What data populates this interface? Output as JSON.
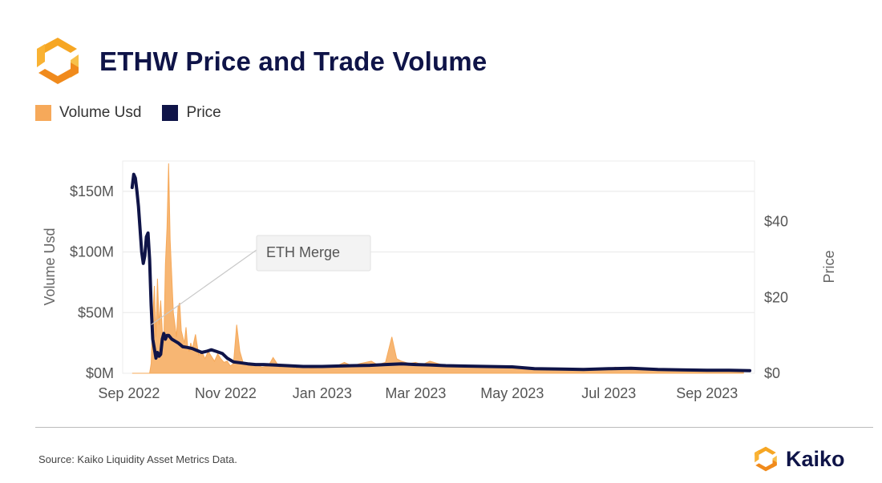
{
  "header": {
    "title": "ETHW Price and Trade Volume",
    "logo_icon": "kaiko-hexagon-logo-icon"
  },
  "colors": {
    "volume": "#f6a95a",
    "price": "#0f1448",
    "title": "#0f1448",
    "grid": "#e8e8e8"
  },
  "chart_data": {
    "type": "area+line",
    "x_axis": {
      "ticks": [
        "Sep 2022",
        "Nov 2022",
        "Jan 2023",
        "Mar 2023",
        "May 2023",
        "Jul 2023",
        "Sep 2023"
      ],
      "range": [
        "2022-08-28",
        "2023-10-01"
      ]
    },
    "y_left": {
      "label": "Volume Usd",
      "ticks": [
        "$0M",
        "$50M",
        "$100M",
        "$150M"
      ],
      "range": [
        0,
        175
      ]
    },
    "y_right": {
      "label": "Price",
      "ticks": [
        "$0",
        "$20",
        "$40"
      ],
      "range": [
        0,
        56
      ]
    },
    "legend": {
      "position": "top-left",
      "entries": [
        "Volume Usd",
        "Price"
      ]
    },
    "annotation": {
      "text": "ETH Merge",
      "date": "2022-09-15"
    },
    "series": [
      {
        "name": "Volume Usd",
        "type": "area",
        "axis": "left",
        "points": [
          [
            "2022-09-03",
            0
          ],
          [
            "2022-09-14",
            0
          ],
          [
            "2022-09-15",
            8
          ],
          [
            "2022-09-16",
            45
          ],
          [
            "2022-09-17",
            72
          ],
          [
            "2022-09-18",
            30
          ],
          [
            "2022-09-19",
            78
          ],
          [
            "2022-09-20",
            40
          ],
          [
            "2022-09-21",
            60
          ],
          [
            "2022-09-22",
            35
          ],
          [
            "2022-09-23",
            25
          ],
          [
            "2022-09-24",
            90
          ],
          [
            "2022-09-25",
            120
          ],
          [
            "2022-09-26",
            173
          ],
          [
            "2022-09-27",
            110
          ],
          [
            "2022-09-28",
            80
          ],
          [
            "2022-09-29",
            50
          ],
          [
            "2022-09-30",
            40
          ],
          [
            "2022-10-01",
            30
          ],
          [
            "2022-10-02",
            55
          ],
          [
            "2022-10-03",
            58
          ],
          [
            "2022-10-04",
            35
          ],
          [
            "2022-10-05",
            30
          ],
          [
            "2022-10-06",
            25
          ],
          [
            "2022-10-07",
            38
          ],
          [
            "2022-10-08",
            22
          ],
          [
            "2022-10-09",
            18
          ],
          [
            "2022-10-10",
            25
          ],
          [
            "2022-10-11",
            20
          ],
          [
            "2022-10-13",
            32
          ],
          [
            "2022-10-15",
            15
          ],
          [
            "2022-10-17",
            18
          ],
          [
            "2022-10-19",
            12
          ],
          [
            "2022-10-21",
            18
          ],
          [
            "2022-10-23",
            14
          ],
          [
            "2022-10-25",
            10
          ],
          [
            "2022-10-27",
            16
          ],
          [
            "2022-10-29",
            12
          ],
          [
            "2022-10-31",
            9
          ],
          [
            "2022-11-02",
            10
          ],
          [
            "2022-11-04",
            6
          ],
          [
            "2022-11-06",
            8
          ],
          [
            "2022-11-08",
            40
          ],
          [
            "2022-11-10",
            18
          ],
          [
            "2022-11-12",
            9
          ],
          [
            "2022-11-14",
            8
          ],
          [
            "2022-11-17",
            6
          ],
          [
            "2022-11-20",
            7
          ],
          [
            "2022-11-24",
            5
          ],
          [
            "2022-11-28",
            6
          ],
          [
            "2022-12-01",
            13
          ],
          [
            "2022-12-05",
            5
          ],
          [
            "2022-12-10",
            7
          ],
          [
            "2022-12-15",
            4
          ],
          [
            "2022-12-20",
            6
          ],
          [
            "2022-12-25",
            4
          ],
          [
            "2023-01-01",
            5
          ],
          [
            "2023-01-10",
            6
          ],
          [
            "2023-01-15",
            9
          ],
          [
            "2023-01-20",
            6
          ],
          [
            "2023-01-25",
            8
          ],
          [
            "2023-02-01",
            10
          ],
          [
            "2023-02-05",
            7
          ],
          [
            "2023-02-10",
            9
          ],
          [
            "2023-02-14",
            30
          ],
          [
            "2023-02-17",
            12
          ],
          [
            "2023-02-20",
            10
          ],
          [
            "2023-02-25",
            8
          ],
          [
            "2023-03-01",
            9
          ],
          [
            "2023-03-05",
            7
          ],
          [
            "2023-03-10",
            10
          ],
          [
            "2023-03-15",
            8
          ],
          [
            "2023-03-20",
            6
          ],
          [
            "2023-03-25",
            7
          ],
          [
            "2023-04-01",
            6
          ],
          [
            "2023-04-10",
            5
          ],
          [
            "2023-04-20",
            6
          ],
          [
            "2023-05-01",
            4
          ],
          [
            "2023-05-10",
            5
          ],
          [
            "2023-05-20",
            4
          ],
          [
            "2023-06-01",
            3
          ],
          [
            "2023-06-15",
            4
          ],
          [
            "2023-07-01",
            3
          ],
          [
            "2023-07-05",
            5
          ],
          [
            "2023-07-15",
            3
          ],
          [
            "2023-08-01",
            3
          ],
          [
            "2023-08-15",
            2
          ],
          [
            "2023-09-01",
            2
          ],
          [
            "2023-09-15",
            2
          ],
          [
            "2023-09-24",
            1
          ]
        ]
      },
      {
        "name": "Price",
        "type": "line",
        "axis": "right",
        "points": [
          [
            "2022-09-03",
            49
          ],
          [
            "2022-09-04",
            52.5
          ],
          [
            "2022-09-05",
            51.5
          ],
          [
            "2022-09-06",
            48
          ],
          [
            "2022-09-07",
            44
          ],
          [
            "2022-09-08",
            38
          ],
          [
            "2022-09-09",
            32
          ],
          [
            "2022-09-10",
            29
          ],
          [
            "2022-09-11",
            31
          ],
          [
            "2022-09-12",
            36
          ],
          [
            "2022-09-13",
            37
          ],
          [
            "2022-09-14",
            30
          ],
          [
            "2022-09-15",
            18
          ],
          [
            "2022-09-16",
            9
          ],
          [
            "2022-09-17",
            6.5
          ],
          [
            "2022-09-18",
            4
          ],
          [
            "2022-09-19",
            5.5
          ],
          [
            "2022-09-20",
            4.5
          ],
          [
            "2022-09-21",
            5
          ],
          [
            "2022-09-22",
            9
          ],
          [
            "2022-09-23",
            10.5
          ],
          [
            "2022-09-24",
            9
          ],
          [
            "2022-09-25",
            10
          ],
          [
            "2022-09-26",
            10
          ],
          [
            "2022-09-27",
            9.5
          ],
          [
            "2022-09-28",
            9
          ],
          [
            "2022-09-30",
            8.5
          ],
          [
            "2022-10-02",
            8
          ],
          [
            "2022-10-05",
            7
          ],
          [
            "2022-10-08",
            6.8
          ],
          [
            "2022-10-11",
            6.5
          ],
          [
            "2022-10-14",
            6
          ],
          [
            "2022-10-17",
            5.5
          ],
          [
            "2022-10-20",
            5.8
          ],
          [
            "2022-10-23",
            6.2
          ],
          [
            "2022-10-26",
            5.8
          ],
          [
            "2022-10-30",
            5.2
          ],
          [
            "2022-11-02",
            4
          ],
          [
            "2022-11-06",
            3
          ],
          [
            "2022-11-10",
            2.8
          ],
          [
            "2022-11-15",
            2.5
          ],
          [
            "2022-11-20",
            2.3
          ],
          [
            "2022-11-25",
            2.3
          ],
          [
            "2022-12-01",
            2.2
          ],
          [
            "2022-12-10",
            2.0
          ],
          [
            "2022-12-20",
            1.8
          ],
          [
            "2023-01-01",
            1.8
          ],
          [
            "2023-01-10",
            1.9
          ],
          [
            "2023-01-20",
            2.0
          ],
          [
            "2023-01-31",
            2.1
          ],
          [
            "2023-02-10",
            2.3
          ],
          [
            "2023-02-20",
            2.5
          ],
          [
            "2023-03-01",
            2.3
          ],
          [
            "2023-03-10",
            2.2
          ],
          [
            "2023-03-20",
            2.0
          ],
          [
            "2023-04-01",
            1.9
          ],
          [
            "2023-04-15",
            1.8
          ],
          [
            "2023-05-01",
            1.7
          ],
          [
            "2023-05-15",
            1.2
          ],
          [
            "2023-06-01",
            1.1
          ],
          [
            "2023-06-15",
            1.0
          ],
          [
            "2023-07-01",
            1.2
          ],
          [
            "2023-07-15",
            1.3
          ],
          [
            "2023-08-01",
            1.0
          ],
          [
            "2023-08-15",
            0.9
          ],
          [
            "2023-09-01",
            0.8
          ],
          [
            "2023-09-15",
            0.8
          ],
          [
            "2023-09-28",
            0.7
          ]
        ]
      }
    ]
  },
  "footer": {
    "source": "Source: Kaiko Liquidity Asset Metrics Data.",
    "brand_name": "Kaiko",
    "brand_icon": "kaiko-hexagon-logo-icon"
  }
}
